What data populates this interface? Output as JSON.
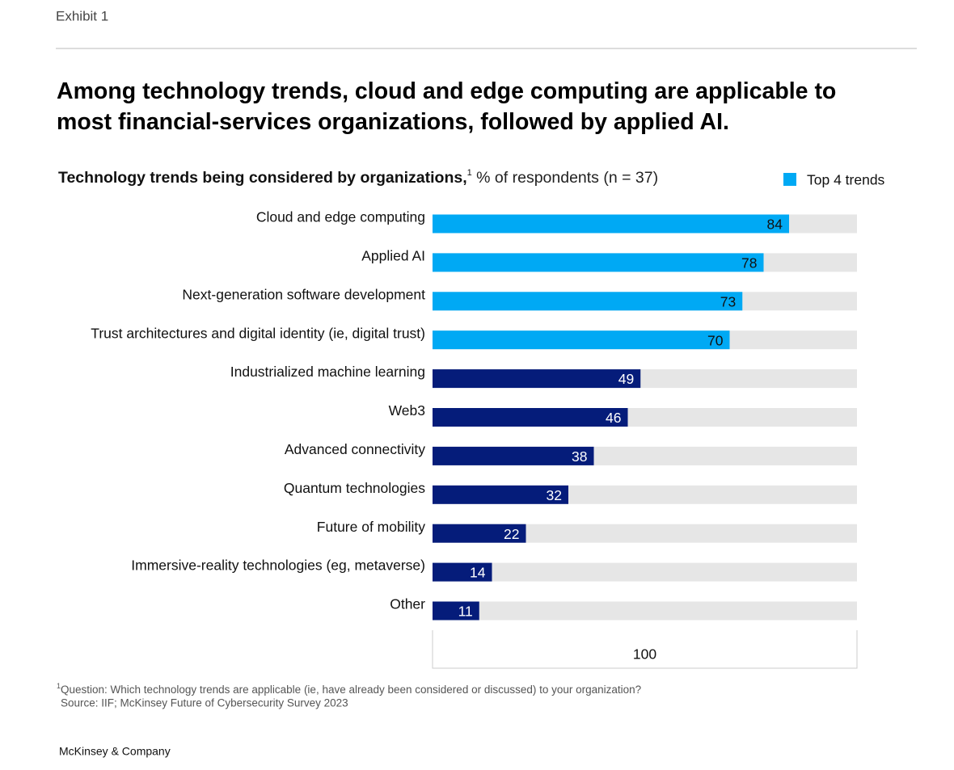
{
  "exhibit": "Exhibit 1",
  "chart_data": {
    "type": "bar",
    "orientation": "horizontal",
    "title": "Among technology trends, cloud and edge computing are applicable to most financial-services organizations, followed by applied AI.",
    "subtitle": {
      "bold": "Technology trends being considered by organizations,",
      "footnote_mark": "1",
      "rest": " % of respondents (n = 37)"
    },
    "categories": [
      "Cloud and edge computing",
      "Applied AI",
      "Next-generation software development",
      "Trust architectures and digital identity (ie, digital trust)",
      "Industrialized machine learning",
      "Web3",
      "Advanced connectivity",
      "Quantum technologies",
      "Future of mobility",
      "Immersive-reality technologies (eg, metaverse)",
      "Other"
    ],
    "values": [
      84,
      78,
      73,
      70,
      49,
      46,
      38,
      32,
      22,
      14,
      11
    ],
    "colors": [
      "#00a9f4",
      "#00a9f4",
      "#00a9f4",
      "#00a9f4",
      "#051c7a",
      "#051c7a",
      "#051c7a",
      "#051c7a",
      "#051c7a",
      "#051c7a",
      "#051c7a"
    ],
    "track_color": "#e6e6e6",
    "legend": {
      "label": "Top 4 trends",
      "color": "#00a9f4",
      "position": "top-right"
    },
    "xlim": [
      0,
      100
    ]
  },
  "footnotes": {
    "mark": "1",
    "question": "Question: Which technology trends are applicable (ie, have already been considered or discussed) to your organization?",
    "source": "Source: IIF; McKinsey Future of Cybersecurity Survey 2023"
  },
  "brand": "McKinsey & Company"
}
